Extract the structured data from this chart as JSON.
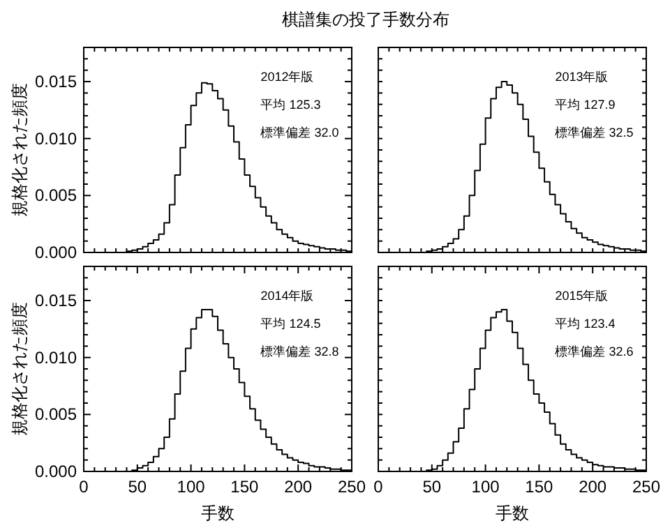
{
  "chart_data": [
    {
      "type": "histogram",
      "title": "棋譜集の投了手数分布",
      "ylabel": "規格化された頻度",
      "tick_labels": "y",
      "color": "#000000",
      "grid": false,
      "annotations": [
        "2012年版",
        "平均 125.3",
        "標準偏差 32.0"
      ],
      "bins": [
        0,
        5,
        10,
        15,
        20,
        25,
        30,
        35,
        40,
        45,
        50,
        55,
        60,
        65,
        70,
        75,
        80,
        85,
        90,
        95,
        100,
        105,
        110,
        115,
        120,
        125,
        130,
        135,
        140,
        145,
        150,
        155,
        160,
        165,
        170,
        175,
        180,
        185,
        190,
        195,
        200,
        205,
        210,
        215,
        220,
        225,
        230,
        235,
        240,
        245,
        250
      ],
      "values": [
        0,
        0,
        0,
        0,
        0,
        0,
        0,
        0,
        0.0001,
        0.0002,
        0.0003,
        0.0005,
        0.0008,
        0.0011,
        0.0016,
        0.0026,
        0.0042,
        0.0068,
        0.0092,
        0.0112,
        0.0129,
        0.014,
        0.0149,
        0.0148,
        0.0142,
        0.0135,
        0.0125,
        0.0111,
        0.0097,
        0.0082,
        0.0068,
        0.0058,
        0.0048,
        0.004,
        0.0032,
        0.0026,
        0.002,
        0.0016,
        0.0013,
        0.001,
        0.0008,
        0.0007,
        0.0006,
        0.0005,
        0.0004,
        0.0003,
        0.0003,
        0.0002,
        0.0002,
        0.0001
      ],
      "xlim": [
        0,
        250
      ],
      "ylim": [
        0,
        0.018
      ],
      "xticks": [
        {
          "value": 0,
          "label": null
        },
        {
          "value": 10,
          "label": null
        },
        {
          "value": 20,
          "label": null
        },
        {
          "value": 30,
          "label": null
        },
        {
          "value": 40,
          "label": null
        },
        {
          "value": 50,
          "label": null
        },
        {
          "value": 60,
          "label": null
        },
        {
          "value": 70,
          "label": null
        },
        {
          "value": 80,
          "label": null
        },
        {
          "value": 90,
          "label": null
        },
        {
          "value": 100,
          "label": null
        },
        {
          "value": 110,
          "label": null
        },
        {
          "value": 120,
          "label": null
        },
        {
          "value": 130,
          "label": null
        },
        {
          "value": 140,
          "label": null
        },
        {
          "value": 150,
          "label": null
        },
        {
          "value": 160,
          "label": null
        },
        {
          "value": 170,
          "label": null
        },
        {
          "value": 180,
          "label": null
        },
        {
          "value": 190,
          "label": null
        },
        {
          "value": 200,
          "label": null
        },
        {
          "value": 210,
          "label": null
        },
        {
          "value": 220,
          "label": null
        },
        {
          "value": 230,
          "label": null
        },
        {
          "value": 240,
          "label": null
        },
        {
          "value": 250,
          "label": null
        }
      ],
      "yticks": [
        {
          "value": 0,
          "label": "0.000"
        },
        {
          "value": 0.001,
          "label": null
        },
        {
          "value": 0.002,
          "label": null
        },
        {
          "value": 0.003,
          "label": null
        },
        {
          "value": 0.004,
          "label": null
        },
        {
          "value": 0.005,
          "label": "0.005"
        },
        {
          "value": 0.006,
          "label": null
        },
        {
          "value": 0.007,
          "label": null
        },
        {
          "value": 0.008,
          "label": null
        },
        {
          "value": 0.009,
          "label": null
        },
        {
          "value": 0.01,
          "label": "0.010"
        },
        {
          "value": 0.011,
          "label": null
        },
        {
          "value": 0.012,
          "label": null
        },
        {
          "value": 0.013,
          "label": null
        },
        {
          "value": 0.014,
          "label": null
        },
        {
          "value": 0.015,
          "label": "0.015"
        },
        {
          "value": 0.016,
          "label": null
        },
        {
          "value": 0.017,
          "label": null
        }
      ]
    },
    {
      "type": "histogram",
      "tick_labels": false,
      "color": "#000000",
      "grid": false,
      "annotations": [
        "2013年版",
        "平均 127.9",
        "標準偏差 32.5"
      ],
      "bins": [
        0,
        5,
        10,
        15,
        20,
        25,
        30,
        35,
        40,
        45,
        50,
        55,
        60,
        65,
        70,
        75,
        80,
        85,
        90,
        95,
        100,
        105,
        110,
        115,
        120,
        125,
        130,
        135,
        140,
        145,
        150,
        155,
        160,
        165,
        170,
        175,
        180,
        185,
        190,
        195,
        200,
        205,
        210,
        215,
        220,
        225,
        230,
        235,
        240,
        245,
        250
      ],
      "values": [
        0,
        0,
        0,
        0,
        0,
        0,
        0,
        0,
        0,
        0.0001,
        0.0002,
        0.0003,
        0.0005,
        0.0008,
        0.0012,
        0.002,
        0.0032,
        0.005,
        0.0072,
        0.0095,
        0.0118,
        0.0135,
        0.0145,
        0.015,
        0.0147,
        0.014,
        0.013,
        0.0117,
        0.0102,
        0.0088,
        0.0074,
        0.0062,
        0.0051,
        0.0042,
        0.0034,
        0.0027,
        0.0021,
        0.0017,
        0.0013,
        0.0011,
        0.0009,
        0.0007,
        0.0006,
        0.0005,
        0.0004,
        0.0003,
        0.0003,
        0.0002,
        0.0002,
        0.0001
      ],
      "xlim": [
        0,
        250
      ],
      "ylim": [
        0,
        0.018
      ],
      "xticks": [
        {
          "value": 0,
          "label": null
        },
        {
          "value": 10,
          "label": null
        },
        {
          "value": 20,
          "label": null
        },
        {
          "value": 30,
          "label": null
        },
        {
          "value": 40,
          "label": null
        },
        {
          "value": 50,
          "label": null
        },
        {
          "value": 60,
          "label": null
        },
        {
          "value": 70,
          "label": null
        },
        {
          "value": 80,
          "label": null
        },
        {
          "value": 90,
          "label": null
        },
        {
          "value": 100,
          "label": null
        },
        {
          "value": 110,
          "label": null
        },
        {
          "value": 120,
          "label": null
        },
        {
          "value": 130,
          "label": null
        },
        {
          "value": 140,
          "label": null
        },
        {
          "value": 150,
          "label": null
        },
        {
          "value": 160,
          "label": null
        },
        {
          "value": 170,
          "label": null
        },
        {
          "value": 180,
          "label": null
        },
        {
          "value": 190,
          "label": null
        },
        {
          "value": 200,
          "label": null
        },
        {
          "value": 210,
          "label": null
        },
        {
          "value": 220,
          "label": null
        },
        {
          "value": 230,
          "label": null
        },
        {
          "value": 240,
          "label": null
        },
        {
          "value": 250,
          "label": null
        }
      ],
      "yticks": [
        {
          "value": 0,
          "label": null
        },
        {
          "value": 0.001,
          "label": null
        },
        {
          "value": 0.002,
          "label": null
        },
        {
          "value": 0.003,
          "label": null
        },
        {
          "value": 0.004,
          "label": null
        },
        {
          "value": 0.005,
          "label": null
        },
        {
          "value": 0.006,
          "label": null
        },
        {
          "value": 0.007,
          "label": null
        },
        {
          "value": 0.008,
          "label": null
        },
        {
          "value": 0.009,
          "label": null
        },
        {
          "value": 0.01,
          "label": null
        },
        {
          "value": 0.011,
          "label": null
        },
        {
          "value": 0.012,
          "label": null
        },
        {
          "value": 0.013,
          "label": null
        },
        {
          "value": 0.014,
          "label": null
        },
        {
          "value": 0.015,
          "label": null
        },
        {
          "value": 0.016,
          "label": null
        },
        {
          "value": 0.017,
          "label": null
        }
      ]
    },
    {
      "type": "histogram",
      "xlabel": "手数",
      "ylabel": "規格化された頻度",
      "color": "#000000",
      "grid": false,
      "annotations": [
        "2014年版",
        "平均 124.5",
        "標準偏差 32.8"
      ],
      "bins": [
        0,
        5,
        10,
        15,
        20,
        25,
        30,
        35,
        40,
        45,
        50,
        55,
        60,
        65,
        70,
        75,
        80,
        85,
        90,
        95,
        100,
        105,
        110,
        115,
        120,
        125,
        130,
        135,
        140,
        145,
        150,
        155,
        160,
        165,
        170,
        175,
        180,
        185,
        190,
        195,
        200,
        205,
        210,
        215,
        220,
        225,
        230,
        235,
        240,
        245,
        250
      ],
      "values": [
        0,
        0,
        0,
        0,
        0,
        0,
        0,
        0,
        0,
        0.0001,
        0.0003,
        0.0005,
        0.0008,
        0.0013,
        0.002,
        0.003,
        0.0046,
        0.0068,
        0.0088,
        0.0108,
        0.0125,
        0.0135,
        0.0142,
        0.0142,
        0.0136,
        0.0124,
        0.0112,
        0.01,
        0.009,
        0.0078,
        0.0066,
        0.0055,
        0.0045,
        0.0037,
        0.003,
        0.0024,
        0.0019,
        0.0015,
        0.0012,
        0.001,
        0.0008,
        0.0007,
        0.0005,
        0.0004,
        0.0004,
        0.0003,
        0.0002,
        0.0002,
        0.0001,
        0.0001
      ],
      "xlim": [
        0,
        250
      ],
      "ylim": [
        0,
        0.018
      ],
      "xticks": [
        0,
        {
          "value": 10,
          "label": null
        },
        {
          "value": 20,
          "label": null
        },
        {
          "value": 30,
          "label": null
        },
        {
          "value": 40,
          "label": null
        },
        50,
        {
          "value": 60,
          "label": null
        },
        {
          "value": 70,
          "label": null
        },
        {
          "value": 80,
          "label": null
        },
        {
          "value": 90,
          "label": null
        },
        100,
        {
          "value": 110,
          "label": null
        },
        {
          "value": 120,
          "label": null
        },
        {
          "value": 130,
          "label": null
        },
        {
          "value": 140,
          "label": null
        },
        150,
        {
          "value": 160,
          "label": null
        },
        {
          "value": 170,
          "label": null
        },
        {
          "value": 180,
          "label": null
        },
        {
          "value": 190,
          "label": null
        },
        200,
        {
          "value": 210,
          "label": null
        },
        {
          "value": 220,
          "label": null
        },
        {
          "value": 230,
          "label": null
        },
        {
          "value": 240,
          "label": null
        },
        250
      ],
      "yticks": [
        {
          "value": 0,
          "label": "0.000"
        },
        {
          "value": 0.001,
          "label": null
        },
        {
          "value": 0.002,
          "label": null
        },
        {
          "value": 0.003,
          "label": null
        },
        {
          "value": 0.004,
          "label": null
        },
        {
          "value": 0.005,
          "label": "0.005"
        },
        {
          "value": 0.006,
          "label": null
        },
        {
          "value": 0.007,
          "label": null
        },
        {
          "value": 0.008,
          "label": null
        },
        {
          "value": 0.009,
          "label": null
        },
        {
          "value": 0.01,
          "label": "0.010"
        },
        {
          "value": 0.011,
          "label": null
        },
        {
          "value": 0.012,
          "label": null
        },
        {
          "value": 0.013,
          "label": null
        },
        {
          "value": 0.014,
          "label": null
        },
        {
          "value": 0.015,
          "label": "0.015"
        },
        {
          "value": 0.016,
          "label": null
        },
        {
          "value": 0.017,
          "label": null
        }
      ]
    },
    {
      "type": "histogram",
      "xlabel": "手数",
      "tick_labels": "x",
      "color": "#000000",
      "grid": false,
      "annotations": [
        "2015年版",
        "平均 123.4",
        "標準偏差 32.6"
      ],
      "bins": [
        0,
        5,
        10,
        15,
        20,
        25,
        30,
        35,
        40,
        45,
        50,
        55,
        60,
        65,
        70,
        75,
        80,
        85,
        90,
        95,
        100,
        105,
        110,
        115,
        120,
        125,
        130,
        135,
        140,
        145,
        150,
        155,
        160,
        165,
        170,
        175,
        180,
        185,
        190,
        195,
        200,
        205,
        210,
        215,
        220,
        225,
        230,
        235,
        240,
        245,
        250
      ],
      "values": [
        0,
        0,
        0,
        0,
        0,
        0,
        0,
        0,
        0,
        0.0001,
        0.0002,
        0.0005,
        0.001,
        0.0016,
        0.0026,
        0.0038,
        0.0055,
        0.0072,
        0.009,
        0.0108,
        0.0124,
        0.0135,
        0.014,
        0.0142,
        0.0132,
        0.0122,
        0.0108,
        0.0094,
        0.008,
        0.0068,
        0.006,
        0.0052,
        0.0042,
        0.0032,
        0.0024,
        0.0019,
        0.0015,
        0.0012,
        0.001,
        0.0008,
        0.0006,
        0.0005,
        0.0004,
        0.0004,
        0.0003,
        0.0003,
        0.0002,
        0.0002,
        0.0001,
        0.0001
      ],
      "xlim": [
        0,
        250
      ],
      "ylim": [
        0,
        0.018
      ],
      "xticks": [
        0,
        {
          "value": 10,
          "label": null
        },
        {
          "value": 20,
          "label": null
        },
        {
          "value": 30,
          "label": null
        },
        {
          "value": 40,
          "label": null
        },
        50,
        {
          "value": 60,
          "label": null
        },
        {
          "value": 70,
          "label": null
        },
        {
          "value": 80,
          "label": null
        },
        {
          "value": 90,
          "label": null
        },
        100,
        {
          "value": 110,
          "label": null
        },
        {
          "value": 120,
          "label": null
        },
        {
          "value": 130,
          "label": null
        },
        {
          "value": 140,
          "label": null
        },
        150,
        {
          "value": 160,
          "label": null
        },
        {
          "value": 170,
          "label": null
        },
        {
          "value": 180,
          "label": null
        },
        {
          "value": 190,
          "label": null
        },
        200,
        {
          "value": 210,
          "label": null
        },
        {
          "value": 220,
          "label": null
        },
        {
          "value": 230,
          "label": null
        },
        {
          "value": 240,
          "label": null
        },
        250
      ],
      "yticks": [
        {
          "value": 0,
          "label": null
        },
        {
          "value": 0.001,
          "label": null
        },
        {
          "value": 0.002,
          "label": null
        },
        {
          "value": 0.003,
          "label": null
        },
        {
          "value": 0.004,
          "label": null
        },
        {
          "value": 0.005,
          "label": null
        },
        {
          "value": 0.006,
          "label": null
        },
        {
          "value": 0.007,
          "label": null
        },
        {
          "value": 0.008,
          "label": null
        },
        {
          "value": 0.009,
          "label": null
        },
        {
          "value": 0.01,
          "label": null
        },
        {
          "value": 0.011,
          "label": null
        },
        {
          "value": 0.012,
          "label": null
        },
        {
          "value": 0.013,
          "label": null
        },
        {
          "value": 0.014,
          "label": null
        },
        {
          "value": 0.015,
          "label": null
        },
        {
          "value": 0.016,
          "label": null
        },
        {
          "value": 0.017,
          "label": null
        }
      ]
    }
  ]
}
